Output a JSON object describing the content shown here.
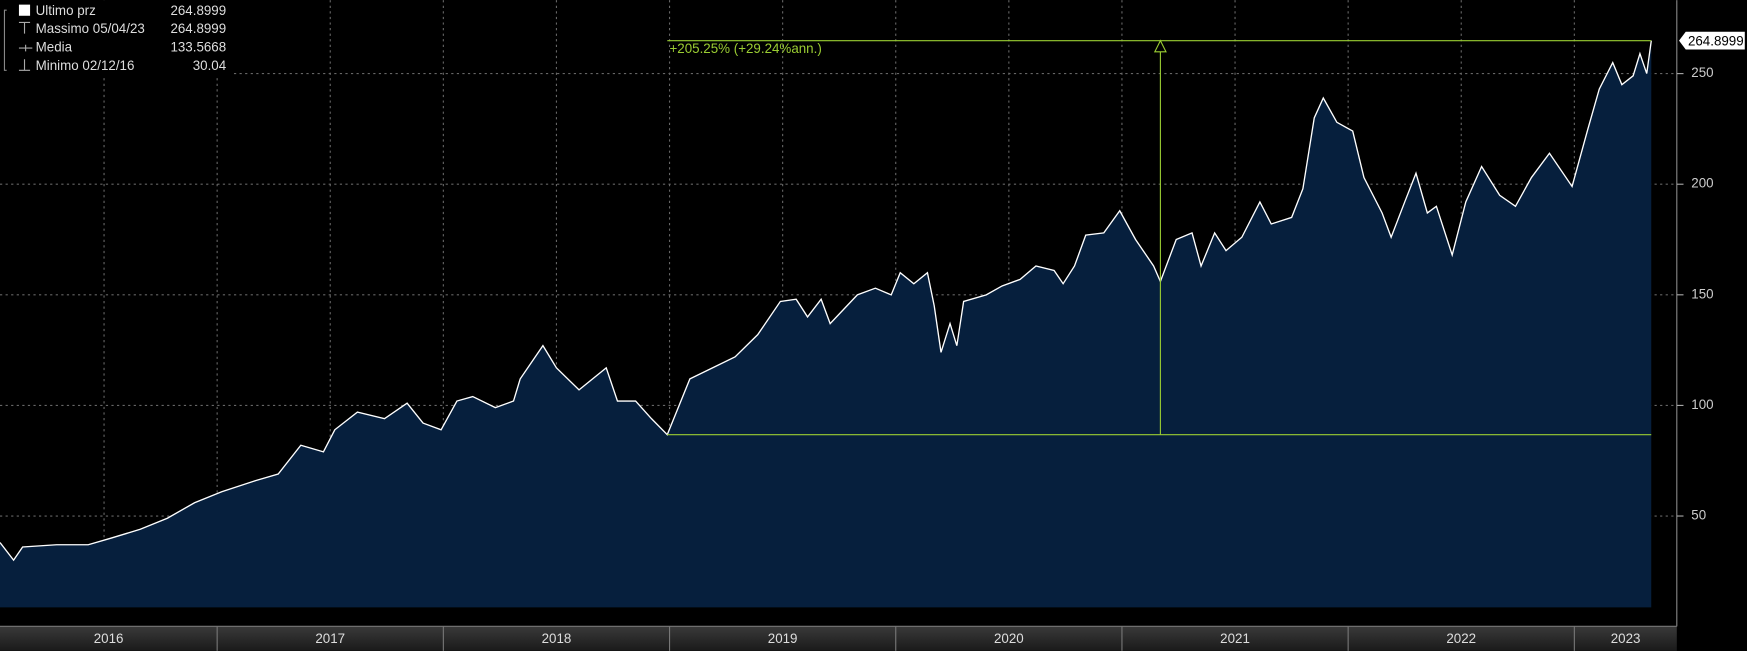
{
  "chart_data": {
    "type": "area",
    "legend": [
      {
        "label": "Ultimo prz",
        "value": 264.8999
      },
      {
        "label": "Massimo 05/04/23",
        "value": 264.8999
      },
      {
        "label": "Media",
        "value": 133.5668
      },
      {
        "label": "Minimo 02/12/16",
        "value": 30.04
      }
    ],
    "series": [
      {
        "name": "Ultimo prz",
        "color": "#ffffff",
        "fill": "#061f3d",
        "x": [
          2016.04,
          2016.1,
          2016.14,
          2016.29,
          2016.43,
          2016.53,
          2016.66,
          2016.78,
          2016.9,
          2017.02,
          2017.17,
          2017.27,
          2017.37,
          2017.47,
          2017.52,
          2017.62,
          2017.74,
          2017.84,
          2017.91,
          2017.99,
          2018.06,
          2018.13,
          2018.23,
          2018.31,
          2018.34,
          2018.44,
          2018.5,
          2018.6,
          2018.72,
          2018.77,
          2018.85,
          2018.92,
          2018.99,
          2019.09,
          2019.19,
          2019.29,
          2019.39,
          2019.49,
          2019.56,
          2019.61,
          2019.67,
          2019.71,
          2019.83,
          2019.91,
          2019.98,
          2020.02,
          2020.08,
          2020.14,
          2020.17,
          2020.2,
          2020.24,
          2020.27,
          2020.3,
          2020.4,
          2020.47,
          2020.55,
          2020.62,
          2020.7,
          2020.74,
          2020.79,
          2020.84,
          2020.92,
          2020.99,
          2021.06,
          2021.14,
          2021.17,
          2021.24,
          2021.31,
          2021.35,
          2021.41,
          2021.46,
          2021.53,
          2021.61,
          2021.66,
          2021.75,
          2021.8,
          2021.85,
          2021.89,
          2021.95,
          2022.02,
          2022.07,
          2022.15,
          2022.19,
          2022.25,
          2022.3,
          2022.35,
          2022.39,
          2022.46,
          2022.52,
          2022.59,
          2022.67,
          2022.74,
          2022.81,
          2022.89,
          2022.99,
          2023.06,
          2023.11,
          2023.17,
          2023.21,
          2023.26,
          2023.29,
          2023.32,
          2023.34
        ],
        "values": [
          38,
          30.04,
          36,
          37,
          37,
          40,
          44,
          49,
          56,
          61,
          66,
          69,
          82,
          79,
          89,
          97,
          94,
          101,
          92,
          89,
          102,
          104,
          99,
          102,
          112,
          127,
          117,
          107,
          117,
          102,
          102,
          94,
          86.78,
          112,
          117,
          122,
          132,
          147,
          148,
          140,
          148,
          137,
          150,
          153,
          150,
          160,
          155,
          160,
          145,
          124,
          137,
          127,
          147,
          150,
          154,
          157,
          163,
          161,
          155,
          163,
          177,
          178,
          188,
          175,
          163,
          156,
          175,
          178,
          163,
          178,
          170,
          176,
          192,
          182,
          185,
          198,
          230,
          239,
          228,
          224,
          203,
          187,
          176,
          192,
          205,
          187,
          190,
          168,
          192,
          208,
          195,
          190,
          203,
          214,
          199,
          225,
          243,
          255,
          245,
          249,
          259,
          250,
          264.8999
        ]
      }
    ],
    "annotation": {
      "text": "+205.25% (+29.24%ann.)",
      "color": "#9acd32",
      "x_start": 2018.99,
      "x_end": 2023.34,
      "arrow_x": 2021.17,
      "low": 86.78,
      "high": 264.8999
    },
    "xlim": [
      2016.04,
      2023.453
    ],
    "xticks": [
      2016.5,
      2017,
      2017.5,
      2018,
      2018.5,
      2019,
      2019.5,
      2020,
      2020.5,
      2021,
      2021.5,
      2022,
      2022.5,
      2023
    ],
    "year_labels": [
      2016,
      2017,
      2018,
      2019,
      2020,
      2021,
      2022,
      2023
    ],
    "ylim": [
      8.7,
      283.2
    ],
    "yticks": [
      50,
      100,
      150,
      200,
      250
    ],
    "grid": true
  }
}
